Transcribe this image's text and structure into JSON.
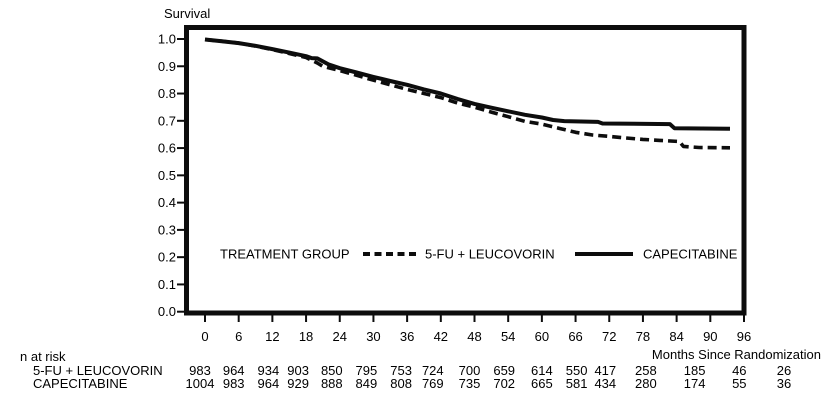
{
  "risk_table": {
    "heading": "n at risk",
    "rows": [
      {
        "label": "5-FU + LEUCOVORIN",
        "counts": [
          983,
          964,
          934,
          903,
          850,
          795,
          753,
          724,
          700,
          659,
          614,
          550,
          417,
          258,
          185,
          46,
          26
        ]
      },
      {
        "label": "CAPECITABINE",
        "counts": [
          1004,
          983,
          964,
          929,
          888,
          849,
          808,
          769,
          735,
          702,
          665,
          581,
          434,
          280,
          174,
          55,
          36
        ]
      }
    ]
  },
  "chart_data": {
    "type": "line",
    "subtype": "kaplan-meier-survival",
    "title": "Survival",
    "ylabel": "Survival",
    "xlabel": "Months Since Randomization",
    "xlim": [
      0,
      96
    ],
    "ylim": [
      0.0,
      1.0
    ],
    "x_ticks": [
      0,
      6,
      12,
      18,
      24,
      30,
      36,
      42,
      48,
      54,
      60,
      66,
      72,
      78,
      84,
      90,
      96
    ],
    "y_tick_labels": [
      "1.0",
      "0.9",
      "0.8",
      "0.7",
      "0.6",
      "0.5",
      "0.4",
      "0.3",
      "0.2",
      "0.1",
      "0.0"
    ],
    "grid": false,
    "legend_title": "TREATMENT GROUP",
    "legend_position": "inside-bottom",
    "line_color": "#0d0d0d",
    "series": [
      {
        "name": "5-FU + LEUCOVORIN",
        "line_style": "dashed",
        "points": [
          [
            0,
            0.998
          ],
          [
            3,
            0.992
          ],
          [
            6,
            0.985
          ],
          [
            9,
            0.974
          ],
          [
            12,
            0.961
          ],
          [
            15,
            0.947
          ],
          [
            18,
            0.932
          ],
          [
            20,
            0.912
          ],
          [
            21,
            0.9
          ],
          [
            24,
            0.884
          ],
          [
            27,
            0.867
          ],
          [
            30,
            0.849
          ],
          [
            33,
            0.832
          ],
          [
            36,
            0.815
          ],
          [
            39,
            0.8
          ],
          [
            42,
            0.785
          ],
          [
            45,
            0.765
          ],
          [
            48,
            0.75
          ],
          [
            51,
            0.732
          ],
          [
            54,
            0.715
          ],
          [
            57,
            0.698
          ],
          [
            60,
            0.688
          ],
          [
            63,
            0.673
          ],
          [
            66,
            0.658
          ],
          [
            69,
            0.648
          ],
          [
            72,
            0.643
          ],
          [
            75,
            0.637
          ],
          [
            78,
            0.632
          ],
          [
            81,
            0.628
          ],
          [
            84.5,
            0.624
          ],
          [
            85.2,
            0.606
          ],
          [
            88,
            0.602
          ],
          [
            93.5,
            0.601
          ]
        ]
      },
      {
        "name": "CAPECITABINE",
        "line_style": "solid",
        "points": [
          [
            0,
            0.998
          ],
          [
            3,
            0.992
          ],
          [
            6,
            0.985
          ],
          [
            9,
            0.975
          ],
          [
            12,
            0.963
          ],
          [
            15,
            0.95
          ],
          [
            18,
            0.937
          ],
          [
            19,
            0.93
          ],
          [
            20,
            0.929
          ],
          [
            22,
            0.907
          ],
          [
            24,
            0.893
          ],
          [
            27,
            0.877
          ],
          [
            30,
            0.861
          ],
          [
            33,
            0.846
          ],
          [
            36,
            0.832
          ],
          [
            39,
            0.815
          ],
          [
            42,
            0.8
          ],
          [
            45,
            0.78
          ],
          [
            48,
            0.762
          ],
          [
            51,
            0.748
          ],
          [
            54,
            0.735
          ],
          [
            57,
            0.722
          ],
          [
            60,
            0.712
          ],
          [
            62,
            0.703
          ],
          [
            64,
            0.699
          ],
          [
            70,
            0.696
          ],
          [
            70.8,
            0.69
          ],
          [
            82.8,
            0.688
          ],
          [
            83.6,
            0.673
          ],
          [
            93.5,
            0.671
          ]
        ]
      }
    ]
  }
}
